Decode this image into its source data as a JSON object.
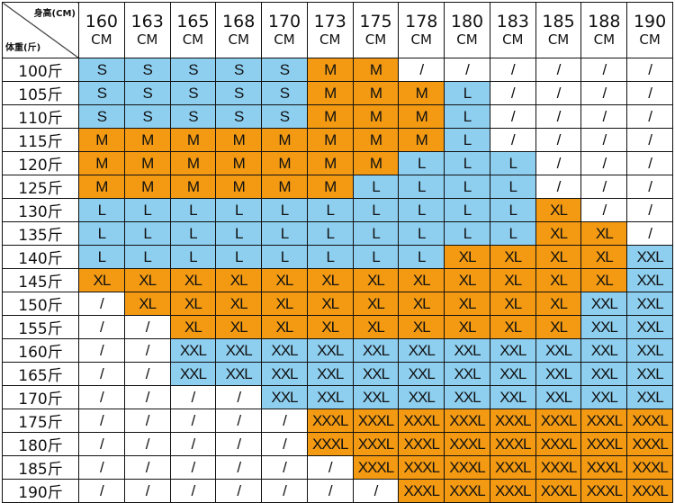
{
  "header": {
    "corner_top": "身高(CM)",
    "corner_bottom": "体重(斤)",
    "heights": [
      {
        "value": "160",
        "unit": "CM"
      },
      {
        "value": "163",
        "unit": "CM"
      },
      {
        "value": "165",
        "unit": "CM"
      },
      {
        "value": "168",
        "unit": "CM"
      },
      {
        "value": "170",
        "unit": "CM"
      },
      {
        "value": "173",
        "unit": "CM"
      },
      {
        "value": "175",
        "unit": "CM"
      },
      {
        "value": "178",
        "unit": "CM"
      },
      {
        "value": "180",
        "unit": "CM"
      },
      {
        "value": "183",
        "unit": "CM"
      },
      {
        "value": "185",
        "unit": "CM"
      },
      {
        "value": "188",
        "unit": "CM"
      },
      {
        "value": "190",
        "unit": "CM"
      }
    ]
  },
  "colors": {
    "S": "#8ecff0",
    "M": "#f39a12",
    "L": "#8ecff0",
    "XL": "#f39a12",
    "XXL": "#8ecff0",
    "XXXL": "#f39a12",
    "/": "#ffffff"
  },
  "rows": [
    {
      "weight": "100斤",
      "cells": [
        "S",
        "S",
        "S",
        "S",
        "S",
        "M",
        "M",
        "/",
        "/",
        "/",
        "/",
        "/",
        "/"
      ]
    },
    {
      "weight": "105斤",
      "cells": [
        "S",
        "S",
        "S",
        "S",
        "S",
        "M",
        "M",
        "M",
        "L",
        "/",
        "/",
        "/",
        "/"
      ]
    },
    {
      "weight": "110斤",
      "cells": [
        "S",
        "S",
        "S",
        "S",
        "S",
        "M",
        "M",
        "M",
        "L",
        "/",
        "/",
        "/",
        "/"
      ]
    },
    {
      "weight": "115斤",
      "cells": [
        "M",
        "M",
        "M",
        "M",
        "M",
        "M",
        "M",
        "M",
        "L",
        "/",
        "/",
        "/",
        "/"
      ]
    },
    {
      "weight": "120斤",
      "cells": [
        "M",
        "M",
        "M",
        "M",
        "M",
        "M",
        "M",
        "L",
        "L",
        "L",
        "/",
        "/",
        "/"
      ]
    },
    {
      "weight": "125斤",
      "cells": [
        "M",
        "M",
        "M",
        "M",
        "M",
        "M",
        "L",
        "L",
        "L",
        "L",
        "/",
        "/",
        "/"
      ]
    },
    {
      "weight": "130斤",
      "cells": [
        "L",
        "L",
        "L",
        "L",
        "L",
        "L",
        "L",
        "L",
        "L",
        "L",
        "XL",
        "/",
        "/"
      ]
    },
    {
      "weight": "135斤",
      "cells": [
        "L",
        "L",
        "L",
        "L",
        "L",
        "L",
        "L",
        "L",
        "L",
        "L",
        "XL",
        "XL",
        "/"
      ]
    },
    {
      "weight": "140斤",
      "cells": [
        "L",
        "L",
        "L",
        "L",
        "L",
        "L",
        "L",
        "L",
        "XL",
        "XL",
        "XL",
        "XL",
        "XXL"
      ]
    },
    {
      "weight": "145斤",
      "cells": [
        "XL",
        "XL",
        "XL",
        "XL",
        "XL",
        "XL",
        "XL",
        "XL",
        "XL",
        "XL",
        "XL",
        "XL",
        "XXL"
      ]
    },
    {
      "weight": "150斤",
      "cells": [
        "/",
        "XL",
        "XL",
        "XL",
        "XL",
        "XL",
        "XL",
        "XL",
        "XL",
        "XL",
        "XL",
        "XXL",
        "XXL"
      ]
    },
    {
      "weight": "155斤",
      "cells": [
        "/",
        "/",
        "XL",
        "XL",
        "XL",
        "XL",
        "XL",
        "XL",
        "XL",
        "XL",
        "XL",
        "XXL",
        "XXL"
      ]
    },
    {
      "weight": "160斤",
      "cells": [
        "/",
        "/",
        "XXL",
        "XXL",
        "XXL",
        "XXL",
        "XXL",
        "XXL",
        "XXL",
        "XXL",
        "XXL",
        "XXL",
        "XXL"
      ]
    },
    {
      "weight": "165斤",
      "cells": [
        "/",
        "/",
        "XXL",
        "XXL",
        "XXL",
        "XXL",
        "XXL",
        "XXL",
        "XXL",
        "XXL",
        "XXL",
        "XXL",
        "XXL"
      ]
    },
    {
      "weight": "170斤",
      "cells": [
        "/",
        "/",
        "/",
        "/",
        "XXL",
        "XXL",
        "XXL",
        "XXL",
        "XXL",
        "XXL",
        "XXL",
        "XXL",
        "XXL"
      ]
    },
    {
      "weight": "175斤",
      "cells": [
        "/",
        "/",
        "/",
        "/",
        "/",
        "XXXL",
        "XXXL",
        "XXXL",
        "XXXL",
        "XXXL",
        "XXXL",
        "XXXL",
        "XXXL"
      ]
    },
    {
      "weight": "180斤",
      "cells": [
        "/",
        "/",
        "/",
        "/",
        "/",
        "XXXL",
        "XXXL",
        "XXXL",
        "XXXL",
        "XXXL",
        "XXXL",
        "XXXL",
        "XXXL"
      ]
    },
    {
      "weight": "185斤",
      "cells": [
        "/",
        "/",
        "/",
        "/",
        "/",
        "/",
        "XXXL",
        "XXXL",
        "XXXL",
        "XXXL",
        "XXXL",
        "XXXL",
        "XXXL"
      ]
    },
    {
      "weight": "190斤",
      "cells": [
        "/",
        "/",
        "/",
        "/",
        "/",
        "/",
        "/",
        "XXXL",
        "XXXL",
        "XXXL",
        "XXXL",
        "XXXL",
        "XXXL"
      ]
    }
  ]
}
